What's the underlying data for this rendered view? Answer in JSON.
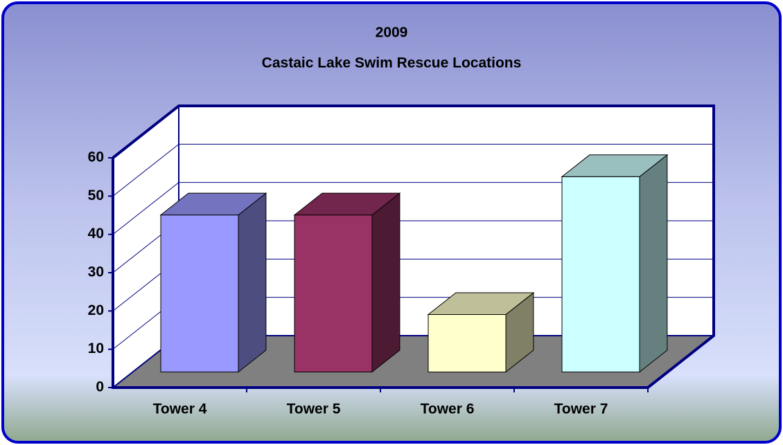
{
  "chart_data": {
    "type": "bar3d",
    "title": [
      "2009",
      "Castaic Lake Swim Rescue Locations"
    ],
    "categories": [
      "Tower 4",
      "Tower 5",
      "Tower 6",
      "Tower 7"
    ],
    "values": [
      41,
      41,
      15,
      51
    ],
    "colors": [
      "#9999ff",
      "#993366",
      "#ffffcc",
      "#ccffff"
    ],
    "ylim": [
      0,
      60
    ],
    "yticks": [
      0,
      10,
      20,
      30,
      40,
      50,
      60
    ],
    "grid": true
  }
}
